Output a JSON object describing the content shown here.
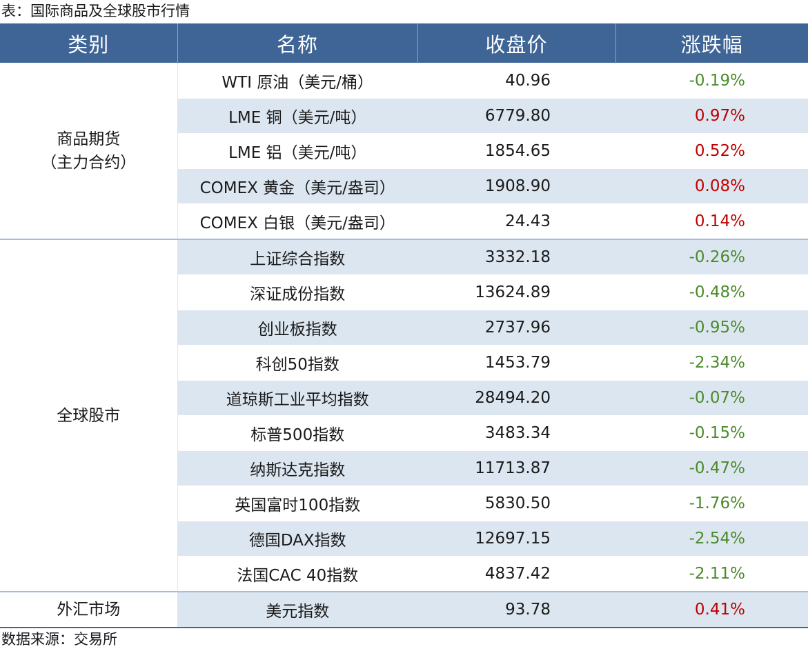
{
  "caption": "表：国际商品及全球股市行情",
  "headers": {
    "category": "类别",
    "name": "名称",
    "close": "收盘价",
    "change": "涨跌幅"
  },
  "groups": [
    {
      "category_lines": [
        "商品期货",
        "（主力合约）"
      ]
    },
    {
      "category_lines": [
        "全球股市"
      ]
    },
    {
      "category_lines": [
        "外汇市场"
      ]
    }
  ],
  "rows": [
    {
      "name": "WTI 原油（美元/桶）",
      "close": "40.96",
      "change": "-0.19%",
      "direction": "down"
    },
    {
      "name": "LME 铜（美元/吨）",
      "close": "6779.80",
      "change": "0.97%",
      "direction": "up"
    },
    {
      "name": "LME 铝（美元/吨）",
      "close": "1854.65",
      "change": "0.52%",
      "direction": "up"
    },
    {
      "name": "COMEX 黄金（美元/盎司）",
      "close": "1908.90",
      "change": "0.08%",
      "direction": "up"
    },
    {
      "name": "COMEX 白银（美元/盎司）",
      "close": "24.43",
      "change": "0.14%",
      "direction": "up"
    },
    {
      "name": "上证综合指数",
      "close": "3332.18",
      "change": "-0.26%",
      "direction": "down"
    },
    {
      "name": "深证成份指数",
      "close": "13624.89",
      "change": "-0.48%",
      "direction": "down"
    },
    {
      "name": "创业板指数",
      "close": "2737.96",
      "change": "-0.95%",
      "direction": "down"
    },
    {
      "name": "科创50指数",
      "close": "1453.79",
      "change": "-2.34%",
      "direction": "down"
    },
    {
      "name": "道琼斯工业平均指数",
      "close": "28494.20",
      "change": "-0.07%",
      "direction": "down"
    },
    {
      "name": "标普500指数",
      "close": "3483.34",
      "change": "-0.15%",
      "direction": "down"
    },
    {
      "name": "纳斯达克指数",
      "close": "11713.87",
      "change": "-0.47%",
      "direction": "down"
    },
    {
      "name": "英国富时100指数",
      "close": "5830.50",
      "change": "-1.76%",
      "direction": "down"
    },
    {
      "name": "德国DAX指数",
      "close": "12697.15",
      "change": "-2.54%",
      "direction": "down"
    },
    {
      "name": "法国CAC 40指数",
      "close": "4837.42",
      "change": "-2.11%",
      "direction": "down"
    },
    {
      "name": "美元指数",
      "close": "93.78",
      "change": "0.41%",
      "direction": "up"
    }
  ],
  "source": "数据来源：交易所",
  "colors": {
    "header_bg": "#3f6596",
    "stripe": "#dce6f0",
    "up": "#c00000",
    "down": "#4a8a2a"
  }
}
